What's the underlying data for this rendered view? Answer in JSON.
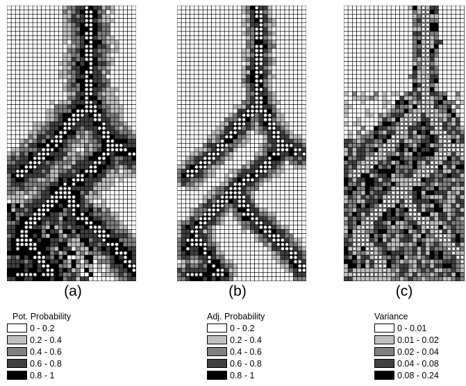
{
  "panels": [
    {
      "id": "a",
      "label": "(a)",
      "legend_title": "Pot. Probability",
      "classes": [
        {
          "label": "0 - 0.2",
          "color": "#ffffff"
        },
        {
          "label": "0.2 - 0.4",
          "color": "#c0c0c0"
        },
        {
          "label": "0.4 - 0.6",
          "color": "#808080"
        },
        {
          "label": "0.6 - 0.8",
          "color": "#404040"
        },
        {
          "label": "0.8 - 1",
          "color": "#000000"
        }
      ]
    },
    {
      "id": "b",
      "label": "(b)",
      "legend_title": "Adj. Probability",
      "classes": [
        {
          "label": "0 - 0.2",
          "color": "#ffffff"
        },
        {
          "label": "0.2 - 0.4",
          "color": "#c0c0c0"
        },
        {
          "label": "0.4 - 0.6",
          "color": "#808080"
        },
        {
          "label": "0.6 - 0.8",
          "color": "#404040"
        },
        {
          "label": "0.8 - 1",
          "color": "#000000"
        }
      ]
    },
    {
      "id": "c",
      "label": "(c)",
      "legend_title": "Variance",
      "classes": [
        {
          "label": "0 - 0.01",
          "color": "#ffffff"
        },
        {
          "label": "0.01 - 0.02",
          "color": "#c0c0c0"
        },
        {
          "label": "0.02 - 0.04",
          "color": "#808080"
        },
        {
          "label": "0.04 - 0.08",
          "color": "#404040"
        },
        {
          "label": "0.08 - 0.24",
          "color": "#000000"
        }
      ]
    }
  ]
}
